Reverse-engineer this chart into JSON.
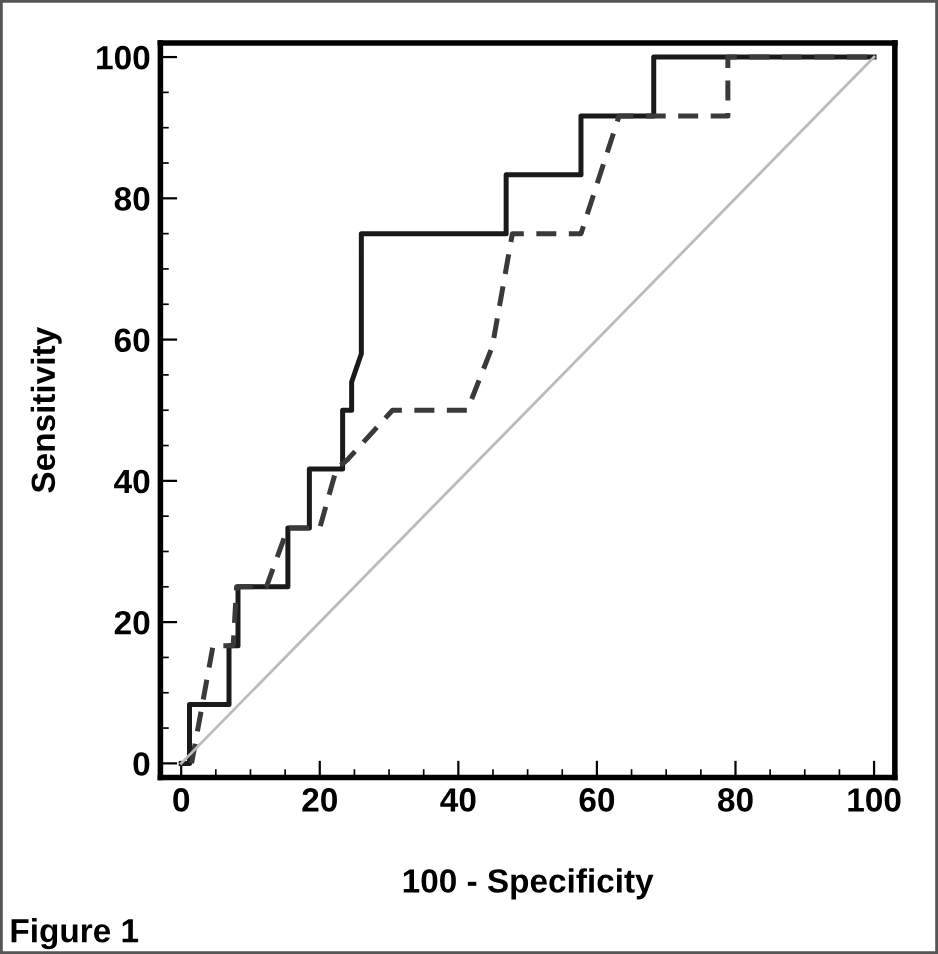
{
  "chart_data": {
    "type": "line",
    "xlabel": "100 - Specificity",
    "ylabel": "Sensitivity",
    "xlim": [
      -3,
      103
    ],
    "ylim": [
      -2,
      102
    ],
    "xticks": [
      0,
      20,
      40,
      60,
      80,
      100
    ],
    "yticks": [
      0,
      20,
      40,
      60,
      80,
      100
    ],
    "grid": false,
    "legend": false,
    "marker": "none",
    "series": [
      {
        "color": "#1a1a1a",
        "line_style": "solid",
        "x": [
          0,
          1.2,
          1.2,
          6.9,
          6.9,
          8.2,
          8.2,
          15.4,
          15.4,
          18.5,
          18.5,
          23.3,
          23.3,
          24.6,
          24.6,
          26,
          26,
          26,
          46.9,
          46.9,
          57.7,
          57.7,
          68.2,
          68.2,
          100
        ],
        "values": [
          0,
          0,
          8.33,
          8.33,
          16.67,
          16.67,
          25,
          25,
          33.33,
          33.33,
          41.67,
          41.67,
          50,
          50,
          54,
          58,
          58,
          75,
          75,
          83.33,
          83.33,
          91.67,
          91.67,
          100,
          100
        ]
      },
      {
        "color": "#3a3a3a",
        "line_style": "dashed",
        "x": [
          1.5,
          4.6,
          7.5,
          8,
          12.3,
          15.4,
          20,
          22.4,
          24,
          30.5,
          41.3,
          44.9,
          47.8,
          57.7,
          63.2,
          78.9,
          78.9,
          100
        ],
        "values": [
          0,
          16.67,
          16.67,
          25,
          25,
          33.33,
          33.33,
          41.67,
          43,
          50,
          50,
          59,
          75,
          75,
          91.67,
          91.67,
          100,
          100
        ]
      },
      {
        "color": "#bbbbbb",
        "line_style": "solid",
        "x": [
          0,
          100
        ],
        "values": [
          0,
          100
        ]
      }
    ],
    "annotations": [
      "Figure 1"
    ]
  }
}
